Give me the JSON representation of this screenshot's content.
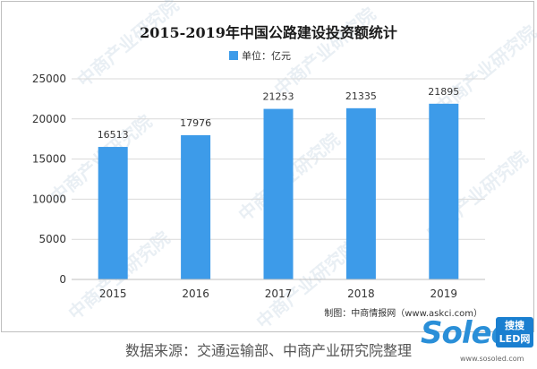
{
  "chart_data": {
    "type": "bar",
    "title": "2015-2019年中国公路建设投资额统计",
    "legend": "单位：亿元",
    "legend_position": "top",
    "categories": [
      "2015",
      "2016",
      "2017",
      "2018",
      "2019"
    ],
    "values": [
      16513,
      17976,
      21253,
      21335,
      21895
    ],
    "ylim": [
      0,
      25000
    ],
    "yticks": [
      "0",
      "5000",
      "10000",
      "15000",
      "20000",
      "25000"
    ],
    "xlabel": "",
    "ylabel": "",
    "grid": true,
    "bar_color": "#3d9be9",
    "credit": "制图：中商情报网（www.askci.com）"
  },
  "source_note": "数据来源：交通运输部、中商产业研究院整理",
  "watermark_text": "中商产业研究院",
  "site_logo": {
    "brand": "Soled",
    "tag_line1": "搜搜",
    "tag_line2": "LED网",
    "url": "www.sosoled.com"
  }
}
